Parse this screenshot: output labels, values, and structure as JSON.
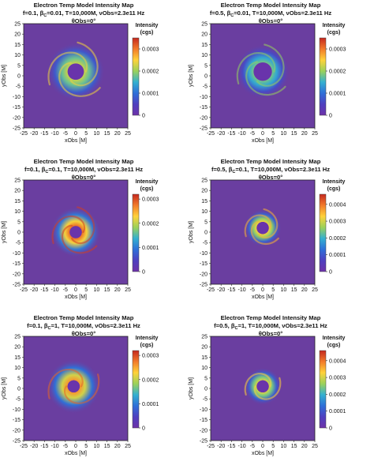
{
  "colors": {
    "background": "#6a3ea0",
    "scale": [
      "#6d32a8",
      "#4f3fc0",
      "#2f6fd8",
      "#34b0d0",
      "#9bd15a",
      "#ffd23a",
      "#f27a2a",
      "#c5281f"
    ]
  },
  "chart_data": [
    {
      "type": "heatmap",
      "title": "Electron Temp Model Intensity Map",
      "subtitle_prefix": "f=0.1, ",
      "subtitle_beta": "β",
      "subtitle_beta_sub": "C",
      "subtitle_suffix": "=0.01, T=10,000M, νObs=2.3e11 Hz",
      "inclination": "θObs=0°",
      "xlabel": "xObs [M]",
      "ylabel": "yObs [M]",
      "xlim": [
        -25,
        25
      ],
      "ylim": [
        -25,
        25
      ],
      "xticks": [
        "-25",
        "-20",
        "-15",
        "-10",
        "-5",
        "0",
        "5",
        "10",
        "15",
        "20",
        "25"
      ],
      "yticks": [
        "25",
        "20",
        "15",
        "10",
        "5",
        "0",
        "-5",
        "-10",
        "-15",
        "-20",
        "-25"
      ],
      "colorbar_label_1": "Intensity",
      "colorbar_label_2": "(cgs)",
      "colorbar_max": 0.00035,
      "colorbar_ticks": [
        "0.0003",
        "0.0002",
        "0.0001",
        "0"
      ],
      "colorbar_tick_values": [
        0.0003,
        0.0002,
        0.0001,
        0
      ],
      "ring": {
        "center": [
          0,
          2
        ],
        "inner_radius": 4,
        "outer_radius": 14,
        "peak": 0.00022,
        "spiral_arms": 3
      }
    },
    {
      "type": "heatmap",
      "title": "Electron Temp Model Intensity Map",
      "subtitle_prefix": "f=0.5, ",
      "subtitle_beta": "β",
      "subtitle_beta_sub": "C",
      "subtitle_suffix": "=0.01, T=10,000M, νObs=2.3e11 Hz",
      "inclination": "θObs=0°",
      "xlabel": "xObs [M]",
      "ylabel": "yObs [M]",
      "xlim": [
        -25,
        25
      ],
      "ylim": [
        -25,
        25
      ],
      "xticks": [
        "-25",
        "-20",
        "-15",
        "-10",
        "-5",
        "0",
        "5",
        "10",
        "15",
        "20",
        "25"
      ],
      "yticks": [
        "25",
        "20",
        "15",
        "10",
        "5",
        "0",
        "-5",
        "-10",
        "-15",
        "-20",
        "-25"
      ],
      "colorbar_label_1": "Intensity",
      "colorbar_label_2": "(cgs)",
      "colorbar_max": 0.00035,
      "colorbar_ticks": [
        "0.0003",
        "0.0002",
        "0.0001",
        "0"
      ],
      "colorbar_tick_values": [
        0.0003,
        0.0002,
        0.0001,
        0
      ],
      "ring": {
        "center": [
          0,
          2
        ],
        "inner_radius": 4.5,
        "outer_radius": 13,
        "peak": 0.00018,
        "spiral_arms": 3
      }
    },
    {
      "type": "heatmap",
      "title": "Electron Temp Model Intensity Map",
      "subtitle_prefix": "f=0.1, ",
      "subtitle_beta": "β",
      "subtitle_beta_sub": "C",
      "subtitle_suffix": "=0.1, T=10,000M, νObs=2.3e11 Hz",
      "inclination": "θObs=0°",
      "xlabel": "xObs [M]",
      "ylabel": "yObs [M]",
      "xlim": [
        -25,
        25
      ],
      "ylim": [
        -25,
        25
      ],
      "xticks": [
        "-25",
        "-20",
        "-15",
        "-10",
        "-5",
        "0",
        "5",
        "10",
        "15",
        "20",
        "25"
      ],
      "yticks": [
        "25",
        "20",
        "15",
        "10",
        "5",
        "0",
        "-5",
        "-10",
        "-15",
        "-20",
        "-25"
      ],
      "colorbar_label_1": "Intensity",
      "colorbar_label_2": "(cgs)",
      "colorbar_max": 0.00032,
      "colorbar_ticks": [
        "0.0003",
        "0.0002",
        "0.0001",
        "0"
      ],
      "colorbar_tick_values": [
        0.0003,
        0.0002,
        0.0001,
        0
      ],
      "ring": {
        "center": [
          0,
          0
        ],
        "inner_radius": 3,
        "outer_radius": 12,
        "peak": 0.00028,
        "spiral_arms": 3
      }
    },
    {
      "type": "heatmap",
      "title": "Electron Temp Model Intensity Map",
      "subtitle_prefix": "f=0.5, ",
      "subtitle_beta": "β",
      "subtitle_beta_sub": "C",
      "subtitle_suffix": "=0.1, T=10,000M, νObs=2.3e11 Hz",
      "inclination": "θObs=0°",
      "xlabel": "xObs [M]",
      "ylabel": "yObs [M]",
      "xlim": [
        -25,
        25
      ],
      "ylim": [
        -25,
        25
      ],
      "xticks": [
        "-25",
        "-20",
        "-15",
        "-10",
        "-5",
        "0",
        "5",
        "10",
        "15",
        "20",
        "25"
      ],
      "yticks": [
        "25",
        "20",
        "15",
        "10",
        "5",
        "0",
        "-5",
        "-10",
        "-15",
        "-20",
        "-25"
      ],
      "colorbar_label_1": "Intensity",
      "colorbar_label_2": "(cgs)",
      "colorbar_max": 0.00046,
      "colorbar_ticks": [
        "0.0004",
        "0.0003",
        "0.0002",
        "0.0001",
        "0"
      ],
      "colorbar_tick_values": [
        0.0004,
        0.0003,
        0.0002,
        0.0001,
        0
      ],
      "ring": {
        "center": [
          0,
          2
        ],
        "inner_radius": 3,
        "outer_radius": 9,
        "peak": 0.00032,
        "spiral_arms": 3
      }
    },
    {
      "type": "heatmap",
      "title": "Electron Temp Model Intensity Map",
      "subtitle_prefix": "f=0.1, ",
      "subtitle_beta": "β",
      "subtitle_beta_sub": "C",
      "subtitle_suffix": "=1, T=10,000M, νObs=2.3e11 Hz",
      "inclination": "θObs=0°",
      "xlabel": "xObs [M]",
      "ylabel": "yObs [M]",
      "xlim": [
        -25,
        25
      ],
      "ylim": [
        -25,
        25
      ],
      "xticks": [
        "-25",
        "-20",
        "-15",
        "-10",
        "-5",
        "0",
        "5",
        "10",
        "15",
        "20",
        "25"
      ],
      "yticks": [
        "25",
        "20",
        "15",
        "10",
        "5",
        "0",
        "-5",
        "-10",
        "-15",
        "-20",
        "-25"
      ],
      "colorbar_label_1": "Intensity",
      "colorbar_label_2": "(cgs)",
      "colorbar_max": 0.00032,
      "colorbar_ticks": [
        "0.0003",
        "0.0002",
        "0.0001",
        "0"
      ],
      "colorbar_tick_values": [
        0.0003,
        0.0002,
        0.0001,
        0
      ],
      "ring": {
        "center": [
          -1,
          1
        ],
        "inner_radius": 3,
        "outer_radius": 13,
        "peak": 0.00026,
        "spiral_arms": 2
      }
    },
    {
      "type": "heatmap",
      "title": "Electron Temp Model Intensity Map",
      "subtitle_prefix": "f=0.5, ",
      "subtitle_beta": "β",
      "subtitle_beta_sub": "C",
      "subtitle_suffix": "=1, T=10,000M, νObs=2.3e11 Hz",
      "inclination": "θObs=0°",
      "xlabel": "xObs [M]",
      "ylabel": "yObs [M]",
      "xlim": [
        -25,
        25
      ],
      "ylim": [
        -25,
        25
      ],
      "xticks": [
        "-25",
        "-20",
        "-15",
        "-10",
        "-5",
        "0",
        "5",
        "10",
        "15",
        "20",
        "25"
      ],
      "yticks": [
        "25",
        "20",
        "15",
        "10",
        "5",
        "0",
        "-5",
        "-10",
        "-15",
        "-20",
        "-25"
      ],
      "colorbar_label_1": "Intensity",
      "colorbar_label_2": "(cgs)",
      "colorbar_max": 0.00046,
      "colorbar_ticks": [
        "0.0004",
        "0.0003",
        "0.0002",
        "0.0001",
        "0"
      ],
      "colorbar_tick_values": [
        0.0004,
        0.0003,
        0.0002,
        0.0001,
        0
      ],
      "ring": {
        "center": [
          0,
          1
        ],
        "inner_radius": 3,
        "outer_radius": 9,
        "peak": 0.0003,
        "spiral_arms": 2
      }
    }
  ]
}
